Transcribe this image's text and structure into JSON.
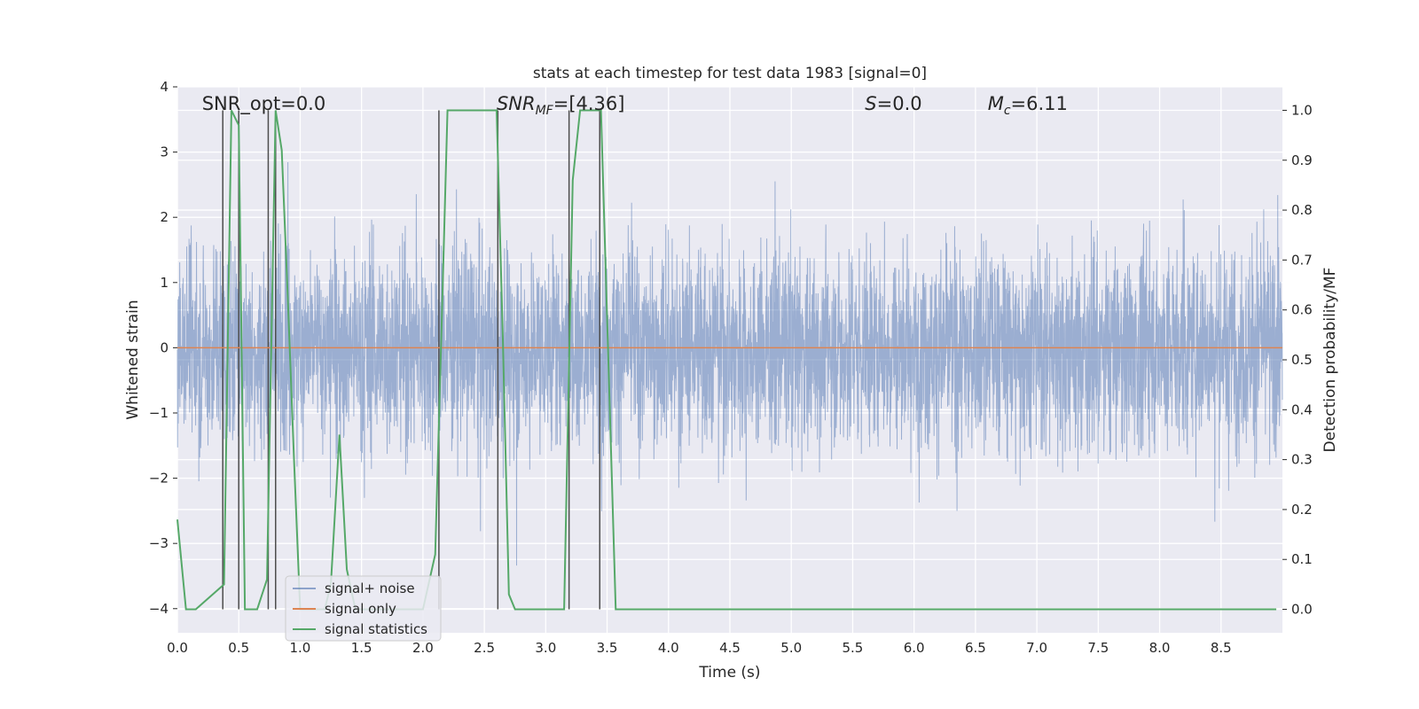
{
  "chart_data": {
    "type": "line",
    "title": "stats at each timestep for test data 1983 [signal=0]",
    "xlabel": "Time (s)",
    "ylabel": "Whitened strain",
    "y2label": "Detection probability/MF",
    "xlim": [
      0.0,
      9.0
    ],
    "ylim": [
      -4.37,
      4.0
    ],
    "y2lim": [
      -0.047,
      1.047
    ],
    "xticks": [
      "0.0",
      "0.5",
      "1.0",
      "1.5",
      "2.0",
      "2.5",
      "3.0",
      "3.5",
      "4.0",
      "4.5",
      "5.0",
      "5.5",
      "6.0",
      "6.5",
      "7.0",
      "7.5",
      "8.0",
      "8.5"
    ],
    "xtick_values": [
      0.0,
      0.5,
      1.0,
      1.5,
      2.0,
      2.5,
      3.0,
      3.5,
      4.0,
      4.5,
      5.0,
      5.5,
      6.0,
      6.5,
      7.0,
      7.5,
      8.0,
      8.5
    ],
    "yticks": [
      "4",
      "3",
      "2",
      "1",
      "0",
      "−1",
      "−2",
      "−3",
      "−4"
    ],
    "ytick_values": [
      4,
      3,
      2,
      1,
      0,
      -1,
      -2,
      -3,
      -4
    ],
    "y2ticks": [
      "1.0",
      "0.9",
      "0.8",
      "0.7",
      "0.6",
      "0.5",
      "0.4",
      "0.3",
      "0.2",
      "0.1",
      "0.0"
    ],
    "y2tick_values": [
      1.0,
      0.9,
      0.8,
      0.7,
      0.6,
      0.5,
      0.4,
      0.3,
      0.2,
      0.1,
      0.0
    ],
    "grid": true,
    "legend_position": "lower-left",
    "annotations": [
      {
        "id": "snr-opt",
        "x": 0.2,
        "text": "SNR_opt=0.0"
      },
      {
        "id": "snr-mf",
        "x": 2.6,
        "text": "SNR_MF=[4.36]"
      },
      {
        "id": "s-val",
        "x": 5.6,
        "text": "S=0.0"
      },
      {
        "id": "mc-val",
        "x": 6.6,
        "text": "M_c=6.11"
      }
    ],
    "series": [
      {
        "name": "signal+ noise",
        "color": "#4c72b0",
        "style": "dense noise trace, approx. ±1.7 typical, peaks to about ±3.5",
        "typical_amplitude": 1.7,
        "peak_amplitude": 3.5
      },
      {
        "name": "signal only",
        "color": "#dd8452",
        "x": [
          0.0,
          9.0
        ],
        "y": [
          0.0,
          0.0
        ]
      },
      {
        "name": "signal statistics",
        "color": "#55a868",
        "axis": "right",
        "x": [
          0.0,
          0.07,
          0.1,
          0.15,
          0.38,
          0.44,
          0.5,
          0.55,
          0.65,
          0.73,
          0.8,
          0.85,
          0.9,
          0.95,
          1.0,
          1.05,
          1.1,
          1.2,
          1.25,
          1.32,
          1.38,
          1.45,
          1.5,
          2.0,
          2.1,
          2.15,
          2.2,
          2.6,
          2.65,
          2.7,
          2.75,
          3.0,
          3.15,
          3.22,
          3.28,
          3.33,
          3.45,
          3.57,
          3.6,
          8.95
        ],
        "y": [
          0.18,
          0.0,
          0.0,
          0.0,
          0.05,
          1.0,
          0.97,
          0.0,
          0.0,
          0.06,
          1.0,
          0.92,
          0.62,
          0.3,
          0.0,
          0.0,
          0.0,
          0.0,
          0.05,
          0.35,
          0.08,
          0.0,
          0.0,
          0.0,
          0.11,
          0.55,
          1.0,
          1.0,
          0.55,
          0.03,
          0.0,
          0.0,
          0.0,
          0.86,
          1.0,
          1.0,
          1.0,
          0.0,
          0.0,
          0.0
        ]
      }
    ],
    "vertical_markers_x": [
      0.37,
      0.5,
      0.74,
      0.8,
      2.13,
      2.61,
      3.19,
      3.44
    ]
  },
  "legend": {
    "items": [
      {
        "label": "signal+ noise",
        "color": "#4c72b0"
      },
      {
        "label": "signal only",
        "color": "#dd8452"
      },
      {
        "label": "signal statistics",
        "color": "#55a868"
      }
    ]
  },
  "colors": {
    "plot_background": "#eaeaf2",
    "grid": "#ffffff",
    "marker_line": "#4d4d4d"
  }
}
